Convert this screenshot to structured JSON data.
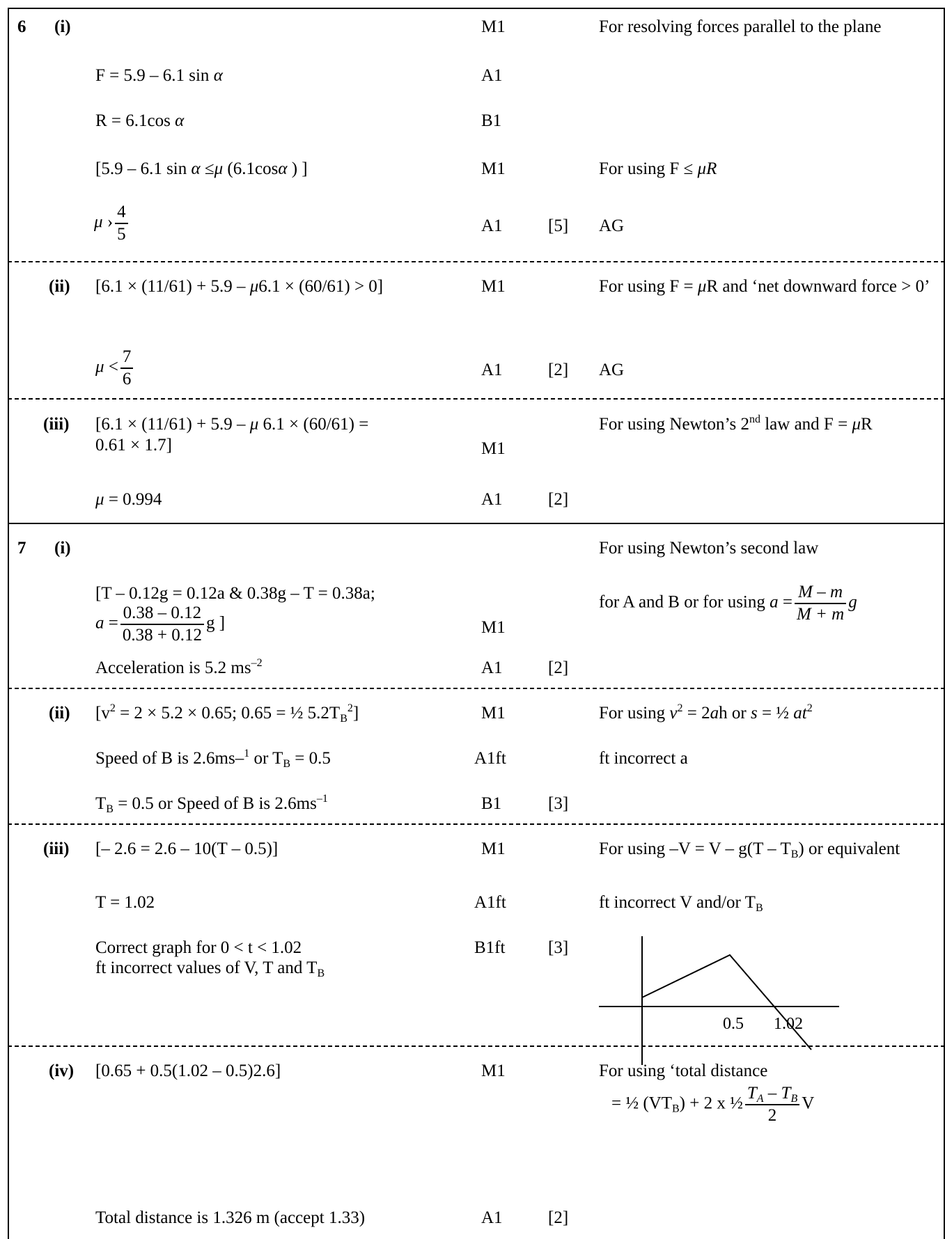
{
  "q6": {
    "num": "6",
    "i": {
      "label": "(i)",
      "r1": {
        "mark": "M1",
        "note": "For resolving forces parallel to the plane"
      },
      "r2": {
        "work": "F = 5.9 – 6.1 sin",
        "mark": "A1"
      },
      "r3": {
        "work": "R = 6.1cos",
        "mark": "B1"
      },
      "r4": {
        "w1": "[5.9 – 6.1 sin",
        "w2": "≤",
        "w3": "(6.1cos",
        "w4": ") ]",
        "mark": "M1",
        "note": "For using F ≤"
      },
      "r5": {
        "num": "4",
        "den": "5",
        "mark": "A1",
        "total": "[5]",
        "note": "AG"
      }
    },
    "ii": {
      "label": "(ii)",
      "r1": {
        "w1": "[6.1 × (11/61) + 5.9 –",
        "w2": "6.1 × (60/61) > 0]",
        "mark": "M1",
        "n1": "For using F =",
        "n2": "R and ‘net downward force > 0’"
      },
      "r2": {
        "num": "7",
        "den": "6",
        "mark": "A1",
        "total": "[2]",
        "note": "AG"
      }
    },
    "iii": {
      "label": "(iii)",
      "r1": {
        "w1": "[6.1 × (11/61) + 5.9 –",
        "w2": "6.1 × (60/61) =",
        "w3": "0.61 × 1.7]",
        "mark": "M1",
        "n1": "For using Newton’s 2",
        "nsup": "nd",
        "n2": " law and F =",
        "n3": "R"
      },
      "r2": {
        "work": "= 0.994",
        "mark": "A1",
        "total": "[2]"
      }
    }
  },
  "q7": {
    "num": "7",
    "i": {
      "label": "(i)",
      "r1": {
        "note": "For using Newton’s second law"
      },
      "r2": {
        "w1": "[T – 0.12g = 0.12a & 0.38g – T = 0.38a;",
        "num": "0.38 – 0.12",
        "den": "0.38 + 0.12",
        "w2": "g ]",
        "mark": "M1",
        "n1": "for A and B or for using",
        "nnum": "M – m",
        "nden": "M + m",
        "n2": "g"
      },
      "r3": {
        "work": "Acceleration is 5.2 ms",
        "sup": "–2",
        "mark": "A1",
        "total": "[2]"
      }
    },
    "ii": {
      "label": "(ii)",
      "r1": {
        "work": "[v",
        "mark": "M1",
        "note": "For using"
      },
      "r2": {
        "w1": "Speed of B is 2.6ms–",
        "w2": "or T",
        "w3": "= 0.5",
        "mark": "A1ft",
        "note": "ft incorrect a"
      },
      "r3": {
        "w1": "T",
        "w2": "= 0.5 or Speed of B is 2.6ms",
        "mark": "B1",
        "total": "[3]"
      }
    },
    "iii": {
      "label": "(iii)",
      "r1": {
        "work": "[– 2.6 = 2.6 – 10(T – 0.5)]",
        "mark": "M1",
        "n1": "For using –V = V – g(T – T",
        "n2": ") or equivalent"
      },
      "r2": {
        "work": "T = 1.02",
        "mark": "A1ft",
        "n1": "ft incorrect V and/or T"
      },
      "r3": {
        "w1": "Correct graph for 0 < t < 1.02",
        "w2": "ft incorrect values of V, T and T",
        "mark": "B1ft",
        "total": "[3]"
      },
      "graph": {
        "tick1": "0.5",
        "tick2": "1.02"
      }
    },
    "iv": {
      "label": "(iv)",
      "r1": {
        "work": "[0.65 + 0.5(1.02 – 0.5)2.6]",
        "mark": "M1",
        "n1": "For using ‘total distance",
        "n2": "= ½ (VT",
        "n3": ") + 2 x ½",
        "nnum": "T",
        "nden": "2",
        "n4": "V"
      },
      "r2": {
        "work": "Total distance is 1.326 m (accept 1.33)",
        "mark": "A1",
        "total": "[2]"
      }
    }
  }
}
